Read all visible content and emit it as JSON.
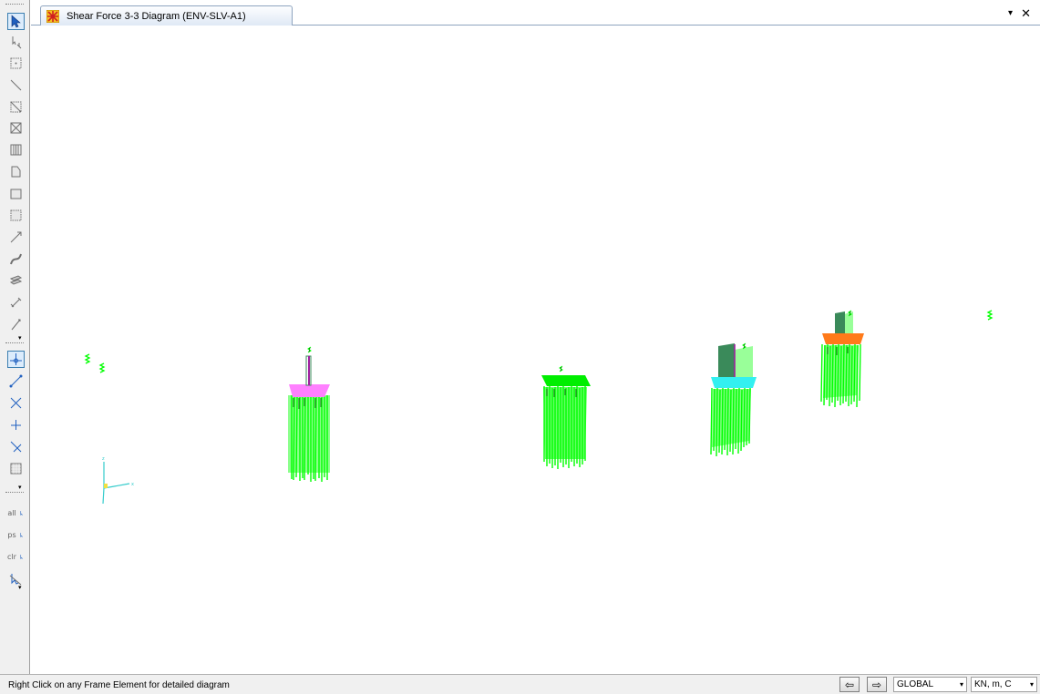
{
  "window": {
    "tab_title": "Shear Force 3-3 Diagram (ENV-SLV-A1)",
    "tab_menu_glyph": "▾",
    "close_glyph": "✕"
  },
  "toolbar": {
    "tools": [
      {
        "name": "pointer-select-icon"
      },
      {
        "name": "reshaper-icon"
      },
      {
        "name": "draw-joint-icon"
      },
      {
        "name": "draw-frame-icon"
      },
      {
        "name": "quick-draw-frame-icon"
      },
      {
        "name": "quick-draw-braces-icon"
      },
      {
        "name": "quick-draw-secondary-beams-icon"
      },
      {
        "name": "draw-poly-area-icon"
      },
      {
        "name": "draw-rect-area-icon"
      },
      {
        "name": "quick-draw-area-icon"
      },
      {
        "name": "draw-link-icon"
      },
      {
        "name": "draw-tendon-icon"
      },
      {
        "name": "draw-section-cut-icon"
      },
      {
        "name": "draw-dimension-icon"
      },
      {
        "name": "draw-reference-point-icon"
      },
      {
        "name": "snap-points-icon"
      },
      {
        "name": "snap-ends-icon"
      },
      {
        "name": "snap-intersections-icon"
      },
      {
        "name": "snap-perpendicular-icon"
      },
      {
        "name": "snap-lines-edges-icon"
      },
      {
        "name": "snap-fine-grid-icon"
      },
      {
        "name": "select-all-icon",
        "text": "all"
      },
      {
        "name": "get-previous-selection-icon",
        "text": "ps"
      },
      {
        "name": "clear-selection-icon",
        "text": "clr"
      },
      {
        "name": "select-intersecting-line-icon"
      }
    ],
    "dropdown_glyph": "▾"
  },
  "status": {
    "message": "Right Click on any Frame Element for detailed diagram",
    "prev_glyph": "⇦",
    "next_glyph": "⇨",
    "coordinate_system": "GLOBAL",
    "units": "KN, m, C",
    "caret": "▾"
  },
  "colors": {
    "diagram_green": "#00ff00",
    "slab_magenta": "#ff80ff",
    "slab_cyan": "#33f0f0",
    "slab_orange": "#ff7a1a",
    "wall_dark": "#3a8a5a",
    "wall_light": "#80ff80",
    "axis_cyan": "#33cccc"
  }
}
